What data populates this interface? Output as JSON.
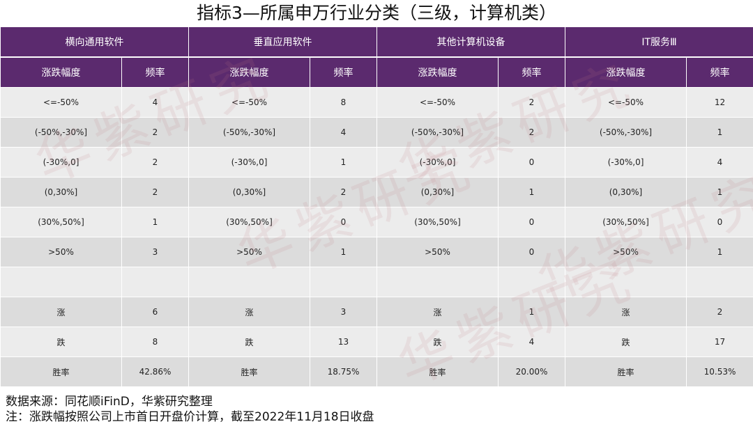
{
  "title": "指标3—所属申万行业分类（三级，计算机类）",
  "groups": [
    "横向通用软件",
    "垂直应用软件",
    "其他计算机设备",
    "IT服务Ⅲ"
  ],
  "subheaders": [
    "涨跌幅度",
    "频率"
  ],
  "rows": [
    [
      "<=-50%",
      "4",
      "<=-50%",
      "8",
      "<=-50%",
      "2",
      "<=-50%",
      "12"
    ],
    [
      "(-50%,-30%]",
      "2",
      "(-50%,-30%]",
      "4",
      "(-50%,-30%]",
      "2",
      "(-50%,-30%]",
      "1"
    ],
    [
      "(-30%,0]",
      "2",
      "(-30%,0]",
      "1",
      "(-30%,0]",
      "0",
      "(-30%,0]",
      "4"
    ],
    [
      "(0,30%]",
      "2",
      "(0,30%]",
      "2",
      "(0,30%]",
      "1",
      "(0,30%]",
      "1"
    ],
    [
      "(30%,50%]",
      "1",
      "(30%,50%]",
      "0",
      "(30%,50%]",
      "0",
      "(30%,50%]",
      "0"
    ],
    [
      ">50%",
      "3",
      ">50%",
      "1",
      ">50%",
      "0",
      ">50%",
      "1"
    ],
    [
      "",
      "",
      "",
      "",
      "",
      "",
      "",
      ""
    ],
    [
      "涨",
      "6",
      "涨",
      "3",
      "涨",
      "1",
      "涨",
      "2"
    ],
    [
      "跌",
      "8",
      "跌",
      "13",
      "跌",
      "4",
      "跌",
      "17"
    ],
    [
      "胜率",
      "42.86%",
      "胜率",
      "18.75%",
      "胜率",
      "20.00%",
      "胜率",
      "10.53%"
    ]
  ],
  "footer": {
    "source": "数据来源：同花顺iFinD，华紫研究整理",
    "note": "注：涨跌幅按照公司上市首日开盘价计算，截至2022年11月18日收盘"
  },
  "watermark": "华紫研究",
  "colors": {
    "header_bg": "#5b2a6e",
    "row_light": "#ececec",
    "row_dark": "#dcdcdc"
  }
}
